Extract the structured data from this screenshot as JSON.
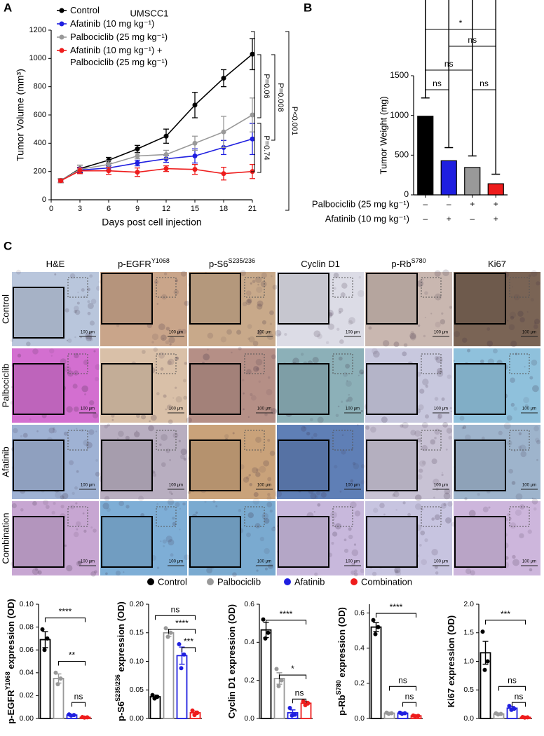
{
  "panel_labels": [
    "A",
    "B",
    "C"
  ],
  "chart_data": [
    {
      "type": "line",
      "title": "UMSCC1",
      "x_label": "Days post cell injection",
      "y_label": "Tumor Volume (mm³)",
      "x": [
        1,
        3,
        6,
        9,
        12,
        15,
        18,
        21
      ],
      "xlim": [
        0,
        21
      ],
      "xticks": [
        0,
        3,
        6,
        9,
        12,
        15,
        18,
        21
      ],
      "ylim": [
        0,
        1200
      ],
      "yticks": [
        0,
        200,
        400,
        600,
        800,
        1000,
        1200
      ],
      "series": [
        {
          "name": "Control",
          "color": "#000000",
          "values": [
            135,
            220,
            280,
            360,
            450,
            670,
            860,
            1030
          ],
          "errors": [
            15,
            25,
            20,
            25,
            50,
            90,
            60,
            110
          ]
        },
        {
          "name": "Afatinib (10 mg kg⁻¹)",
          "color": "#1f1fe0",
          "values": [
            135,
            210,
            225,
            260,
            290,
            310,
            370,
            430
          ],
          "errors": [
            10,
            20,
            15,
            20,
            25,
            50,
            50,
            110
          ]
        },
        {
          "name": "Palbociclib (25 mg kg⁻¹)",
          "color": "#999999",
          "values": [
            135,
            215,
            250,
            310,
            320,
            400,
            480,
            600
          ],
          "errors": [
            15,
            30,
            25,
            20,
            30,
            50,
            110,
            120
          ]
        },
        {
          "name": "Afatinib (10 mg kg⁻¹) + Palbociclib (25 mg kg⁻¹)",
          "color": "#ee1c1c",
          "values": [
            135,
            205,
            205,
            195,
            220,
            215,
            185,
            200
          ],
          "errors": [
            10,
            20,
            25,
            30,
            20,
            35,
            45,
            50
          ]
        }
      ],
      "annotations": [
        "P=0.06",
        "P=0.008",
        "P<0.001",
        "P=0.74"
      ]
    },
    {
      "type": "bar",
      "y_label": "Tumor Weight (mg)",
      "categories": [
        null,
        null,
        null,
        null
      ],
      "values": [
        990,
        430,
        345,
        140
      ],
      "errors": [
        230,
        165,
        145,
        120
      ],
      "colors": [
        "#000000",
        "#1f1fe0",
        "#999999",
        "#ee1c1c"
      ],
      "ylim": [
        0,
        1500
      ],
      "yticks": [
        0,
        500,
        1000,
        1500
      ],
      "treatments": [
        {
          "name": "Palbociclib (25 mg kg⁻¹)",
          "signs": [
            "–",
            "–",
            "+",
            "+"
          ]
        },
        {
          "name": "Afatinib (10 mg kg⁻¹)",
          "signs": [
            "–",
            "+",
            "–",
            "+"
          ]
        }
      ],
      "significance": [
        "*",
        "ns",
        "ns",
        "ns",
        "ns"
      ]
    },
    {
      "type": "bar_dots",
      "y_label": {
        "pre": "p-EGFR",
        "sup": "Y1068",
        "post": " expression (OD)"
      },
      "categories": [
        null,
        null,
        null,
        null
      ],
      "values": [
        0.069,
        0.035,
        0.003,
        0.001
      ],
      "errors": [
        0.007,
        0.004,
        0.0005,
        0.0003
      ],
      "points": [
        [
          0.078,
          0.07,
          0.06
        ],
        [
          0.04,
          0.035,
          0.03
        ],
        [
          0.0035,
          0.003,
          0.0025
        ],
        [
          0.0012,
          0.001,
          0.0008
        ]
      ],
      "colors": [
        "#000000",
        "#999999",
        "#1f1fe0",
        "#ee1c1c"
      ],
      "ylim": [
        0,
        0.1
      ],
      "yticks": [
        {
          "value": 0,
          "label": "0.00"
        },
        0.02,
        0.04,
        0.06,
        0.08,
        {
          "value": 0.1,
          "label": "0.10"
        }
      ],
      "significance": [
        "****",
        "**",
        "ns"
      ]
    },
    {
      "type": "bar_dots",
      "y_label": {
        "pre": "p-S6",
        "sup": "S235/236",
        "post": " expression (OD)"
      },
      "categories": [
        null,
        null,
        null,
        null
      ],
      "values": [
        0.038,
        0.15,
        0.11,
        0.01
      ],
      "errors": [
        0.003,
        0.006,
        0.015,
        0.003
      ],
      "points": [
        [
          0.041,
          0.038,
          0.035
        ],
        [
          0.158,
          0.15,
          0.143
        ],
        [
          0.13,
          0.112,
          0.088
        ],
        [
          0.014,
          0.01,
          0.006
        ]
      ],
      "colors": [
        "#000000",
        "#999999",
        "#1f1fe0",
        "#ee1c1c"
      ],
      "ylim": [
        0,
        0.2
      ],
      "yticks": [
        {
          "value": 0,
          "label": "0.00"
        },
        0.05,
        {
          "value": 0.1,
          "label": "0.10"
        },
        0.15,
        {
          "value": 0.2,
          "label": "0.20"
        }
      ],
      "significance": [
        "ns",
        "****",
        "***"
      ]
    },
    {
      "type": "bar_dots",
      "y_label": {
        "pre": "Cyclin D1 expression (OD)"
      },
      "categories": [
        null,
        null,
        null,
        null
      ],
      "values": [
        0.465,
        0.21,
        0.03,
        0.08
      ],
      "errors": [
        0.04,
        0.03,
        0.015,
        0.01
      ],
      "points": [
        [
          0.52,
          0.45,
          0.42
        ],
        [
          0.26,
          0.2,
          0.17
        ],
        [
          0.055,
          0.02,
          0.015
        ],
        [
          0.09,
          0.08,
          0.07
        ]
      ],
      "colors": [
        "#000000",
        "#999999",
        "#1f1fe0",
        "#ee1c1c"
      ],
      "ylim": [
        0,
        0.6
      ],
      "yticks": [
        {
          "value": 0,
          "label": "0.0"
        },
        0.2,
        0.4,
        0.6
      ],
      "significance": [
        "****",
        "*",
        "ns"
      ]
    },
    {
      "type": "bar_dots",
      "y_label": {
        "pre": "p-Rb",
        "sup": "S780",
        "post": " expression (OD)"
      },
      "categories": [
        null,
        null,
        null,
        null
      ],
      "values": [
        0.52,
        0.03,
        0.03,
        0.015
      ],
      "errors": [
        0.025,
        0.003,
        0.003,
        0.002
      ],
      "points": [
        [
          0.56,
          0.52,
          0.48
        ],
        [
          0.033,
          0.03,
          0.027
        ],
        [
          0.033,
          0.03,
          0.027
        ],
        [
          0.017,
          0.015,
          0.013
        ]
      ],
      "colors": [
        "#000000",
        "#999999",
        "#1f1fe0",
        "#ee1c1c"
      ],
      "ylim": [
        0,
        0.65
      ],
      "yticks": [
        {
          "value": 0,
          "label": "0.0"
        },
        0.2,
        0.4,
        0.6
      ],
      "significance": [
        "****",
        "ns",
        "ns"
      ]
    },
    {
      "type": "bar_dots",
      "y_label": {
        "pre": "Ki67 expression (OD)"
      },
      "categories": [
        null,
        null,
        null,
        null
      ],
      "values": [
        1.15,
        0.08,
        0.18,
        0.02
      ],
      "errors": [
        0.2,
        0.01,
        0.03,
        0.005
      ],
      "points": [
        [
          1.52,
          1.0,
          0.85
        ],
        [
          0.09,
          0.08,
          0.07
        ],
        [
          0.22,
          0.17,
          0.15
        ],
        [
          0.025,
          0.02,
          0.015
        ]
      ],
      "colors": [
        "#000000",
        "#999999",
        "#1f1fe0",
        "#ee1c1c"
      ],
      "ylim": [
        0,
        2
      ],
      "yticks": [
        {
          "value": 0,
          "label": "0.0"
        },
        0.5,
        {
          "value": 1,
          "label": "1.0"
        },
        1.5,
        {
          "value": 2,
          "label": "2.0"
        }
      ],
      "significance": [
        "***",
        "ns",
        "ns"
      ]
    }
  ],
  "panel_c": {
    "columns": [
      {
        "text": "H&E"
      },
      {
        "text": "p-EGFR",
        "sup": "Y1068"
      },
      {
        "text": "p-S6",
        "sup": "S235/236"
      },
      {
        "text": "Cyclin D1"
      },
      {
        "text": "p-Rb",
        "sup": "S780"
      },
      {
        "text": "Ki67"
      }
    ],
    "rows": [
      "Control",
      "Palbociclib",
      "Afatinib",
      "Combination"
    ],
    "scale_bar": "100 μm",
    "legend": [
      {
        "name": "Control",
        "color": "#000000"
      },
      {
        "name": "Palbociclib",
        "color": "#999999"
      },
      {
        "name": "Afatinib",
        "color": "#1f1fe0"
      },
      {
        "name": "Combination",
        "color": "#ee1c1c"
      }
    ]
  }
}
